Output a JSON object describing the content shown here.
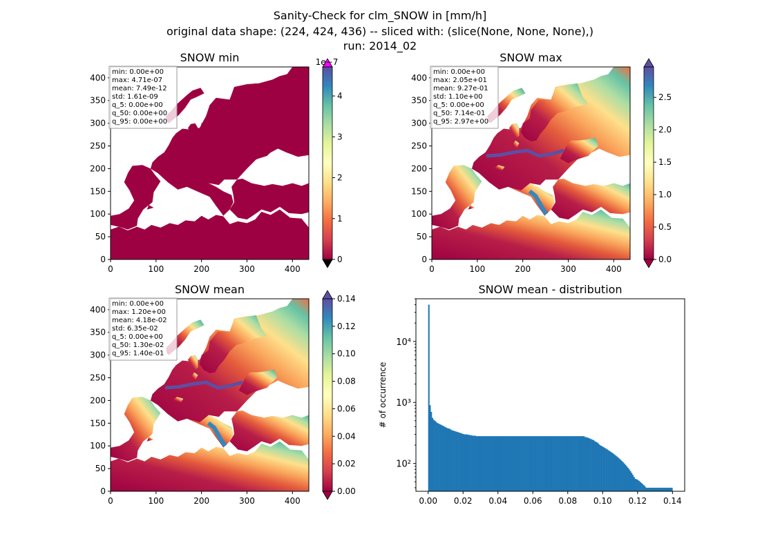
{
  "figure": {
    "suptitle_lines": [
      "Sanity-Check for clm_SNOW in [mm/h]",
      "original data shape: (224, 424, 436) -- sliced with: (slice(None, None, None),)",
      "run: 2014_02"
    ]
  },
  "chart_data": [
    {
      "type": "heatmap",
      "title": "SNOW min",
      "xticks": [
        0,
        100,
        200,
        300,
        400
      ],
      "yticks": [
        0,
        50,
        100,
        150,
        200,
        250,
        300,
        350,
        400
      ],
      "xlim": [
        0,
        436
      ],
      "ylim": [
        0,
        424
      ],
      "colormap": "Spectral_r",
      "colorbar": {
        "ticks": [
          0,
          1,
          2,
          3,
          4
        ],
        "tick_labels": [
          "0",
          "1",
          "2",
          "3",
          "4"
        ],
        "range": [
          0,
          4.71
        ],
        "offset_label": "1e−7",
        "extend_low_color": "#000000",
        "extend_high_color": "#ff00ff"
      },
      "stats": [
        "min: 0.00e+00",
        "max: 4.71e-07",
        "mean: 7.49e-12",
        "std: 1.61e-09",
        "q_5: 0.00e+00",
        "q_50: 0.00e+00",
        "q_95: 0.00e+00"
      ],
      "dominant_color": "#9e0142"
    },
    {
      "type": "heatmap",
      "title": "SNOW max",
      "xticks": [
        0,
        100,
        200,
        300,
        400
      ],
      "yticks": [
        0,
        50,
        100,
        150,
        200,
        250,
        300,
        350,
        400
      ],
      "xlim": [
        0,
        436
      ],
      "ylim": [
        0,
        424
      ],
      "colormap": "Spectral_r",
      "colorbar": {
        "ticks": [
          0,
          0.5,
          1,
          1.5,
          2,
          2.5
        ],
        "tick_labels": [
          "0.0",
          "0.5",
          "1.0",
          "1.5",
          "2.0",
          "2.5"
        ],
        "range": [
          0,
          2.97
        ],
        "offset_label": ""
      },
      "stats": [
        "min: 0.00e+00",
        "max: 2.05e+01",
        "mean: 9.27e-01",
        "std: 1.10e+00",
        "q_5: 0.00e+00",
        "q_50: 7.14e-01",
        "q_95: 2.97e+00"
      ]
    },
    {
      "type": "heatmap",
      "title": "SNOW mean",
      "xticks": [
        0,
        100,
        200,
        300,
        400
      ],
      "yticks": [
        0,
        50,
        100,
        150,
        200,
        250,
        300,
        350,
        400
      ],
      "xlim": [
        0,
        436
      ],
      "ylim": [
        0,
        424
      ],
      "colormap": "Spectral_r",
      "colorbar": {
        "ticks": [
          0,
          0.02,
          0.04,
          0.06,
          0.08,
          0.1,
          0.12,
          0.14
        ],
        "tick_labels": [
          "0.00",
          "0.02",
          "0.04",
          "0.06",
          "0.08",
          "0.10",
          "0.12",
          "0.14"
        ],
        "range": [
          0,
          0.14
        ],
        "offset_label": ""
      },
      "stats": [
        "min: 0.00e+00",
        "max: 1.20e+00",
        "mean: 4.18e-02",
        "std: 6.35e-02",
        "q_5: 0.00e+00",
        "q_50: 1.30e-02",
        "q_95: 1.40e-01"
      ]
    },
    {
      "type": "bar",
      "title": "SNOW mean - distribution",
      "xlabel": "",
      "ylabel": "# of occurrence",
      "yscale": "log",
      "xlim": [
        -0.007,
        0.147
      ],
      "ylim": [
        35,
        50000
      ],
      "xticks": [
        0,
        0.02,
        0.04,
        0.06,
        0.08,
        0.1,
        0.12,
        0.14
      ],
      "xtick_labels": [
        "0.00",
        "0.02",
        "0.04",
        "0.06",
        "0.08",
        "0.10",
        "0.12",
        "0.14"
      ],
      "yticks": [
        100,
        1000,
        10000
      ],
      "ytick_labels": [
        "10²",
        "10³",
        "10⁴"
      ],
      "bar_color": "#1f77b4",
      "bin_start": 0,
      "bin_width": 0.0007,
      "counts": [
        40000,
        900,
        700,
        560,
        520,
        500,
        480,
        460,
        450,
        440,
        430,
        420,
        410,
        400,
        390,
        380,
        375,
        370,
        360,
        350,
        345,
        340,
        335,
        330,
        325,
        320,
        315,
        310,
        305,
        300,
        300,
        300,
        295,
        295,
        290,
        290,
        285,
        285,
        285,
        280,
        280,
        280,
        280,
        280,
        280,
        280,
        280,
        280,
        280,
        280,
        280,
        280,
        280,
        280,
        280,
        280,
        280,
        280,
        280,
        280,
        280,
        280,
        280,
        280,
        280,
        280,
        280,
        280,
        280,
        280,
        280,
        280,
        280,
        280,
        280,
        280,
        280,
        280,
        280,
        280,
        280,
        280,
        280,
        280,
        280,
        280,
        280,
        280,
        280,
        280,
        280,
        280,
        280,
        280,
        280,
        280,
        280,
        280,
        280,
        280,
        280,
        280,
        280,
        280,
        280,
        280,
        280,
        280,
        280,
        280,
        280,
        280,
        280,
        280,
        280,
        280,
        280,
        280,
        280,
        280,
        280,
        280,
        280,
        280,
        280,
        280,
        280,
        280,
        270,
        270,
        265,
        260,
        255,
        250,
        245,
        240,
        230,
        225,
        220,
        210,
        200,
        195,
        190,
        185,
        180,
        175,
        170,
        165,
        160,
        155,
        150,
        145,
        140,
        135,
        130,
        125,
        120,
        115,
        110,
        105,
        100,
        95,
        90,
        85,
        80,
        75,
        70,
        65,
        60,
        56,
        55,
        54,
        52,
        50,
        48,
        46,
        44,
        42,
        40,
        40,
        40,
        40,
        40,
        40,
        40,
        40,
        40,
        40,
        40,
        40,
        40,
        40,
        40,
        40,
        40,
        40,
        40,
        40,
        40,
        40
      ]
    }
  ]
}
